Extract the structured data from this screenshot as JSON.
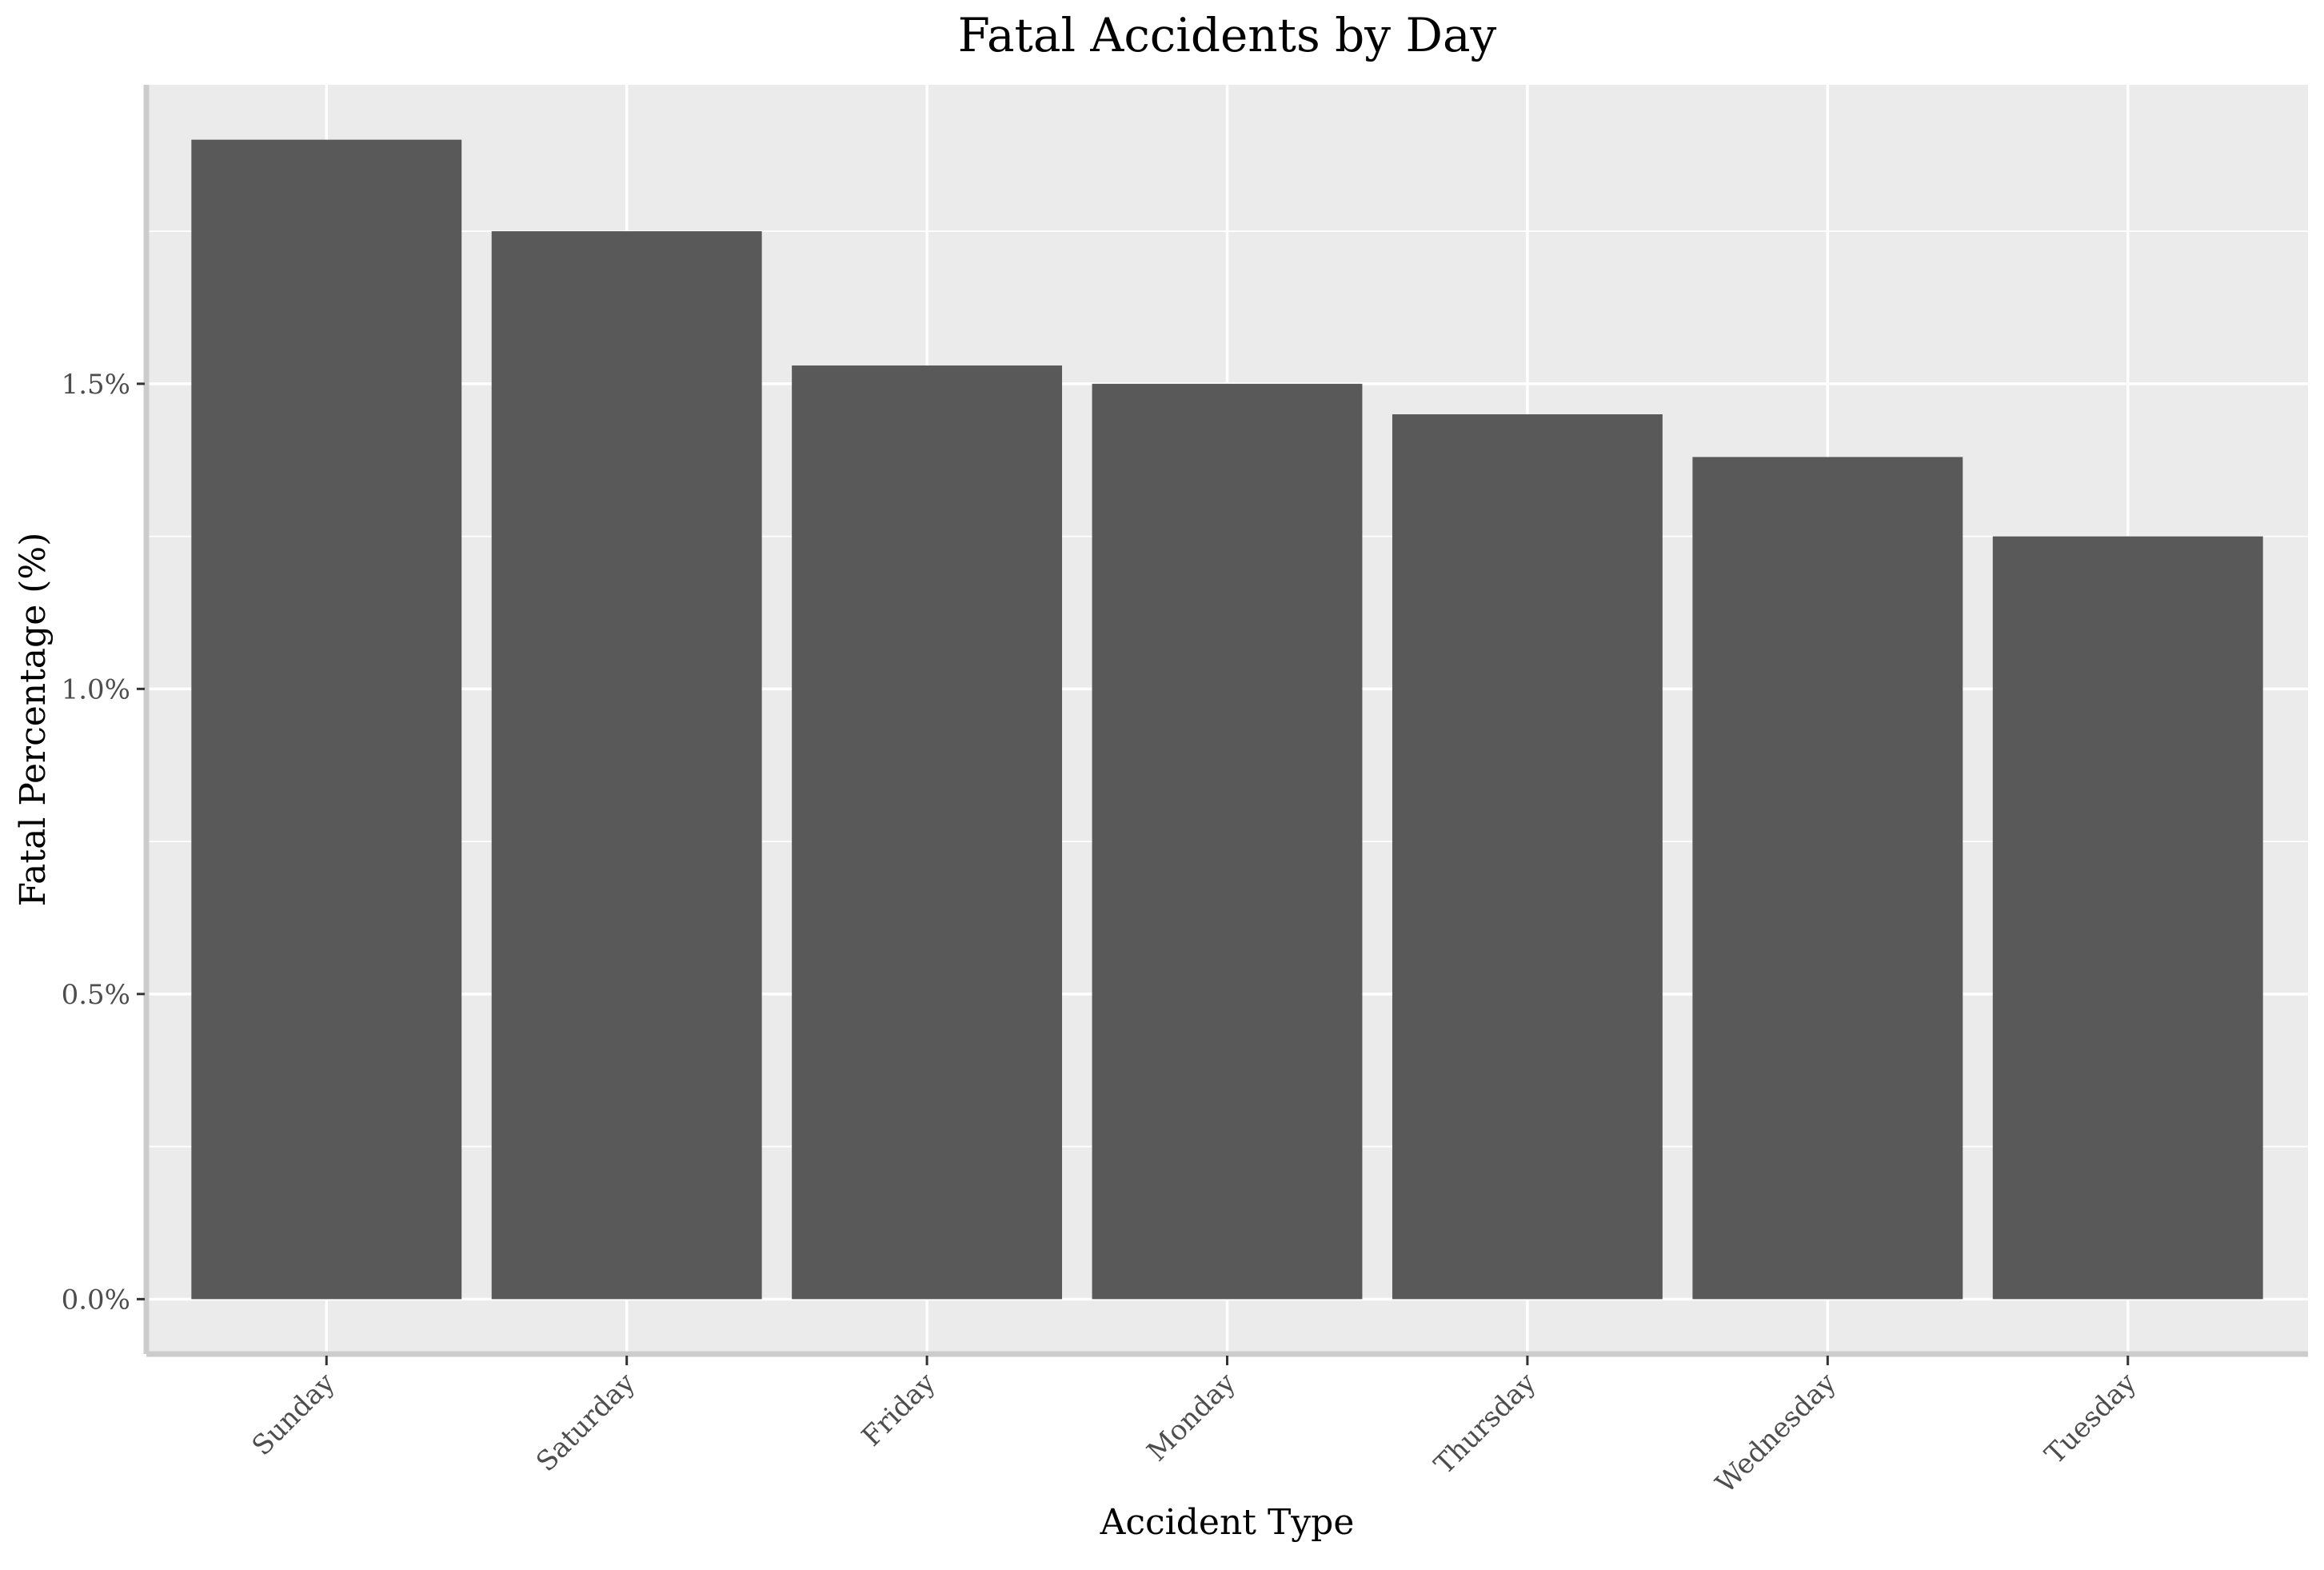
{
  "chart_data": {
    "type": "bar",
    "title": "Fatal Accidents by Day",
    "xlabel": "Accident Type",
    "ylabel": "Fatal Percentage (%)",
    "categories": [
      "Sunday",
      "Saturday",
      "Friday",
      "Monday",
      "Thursday",
      "Wednesday",
      "Tuesday"
    ],
    "values": [
      1.9,
      1.75,
      1.53,
      1.5,
      1.45,
      1.38,
      1.25
    ],
    "ylim": [
      -0.09,
      1.99
    ],
    "yticks": [
      0.0,
      0.5,
      1.0,
      1.5
    ],
    "ytick_labels": [
      "0.0%",
      "0.5%",
      "1.0%",
      "1.5%"
    ],
    "grid": true,
    "colors": {
      "bar": "#595959",
      "panel_background": "#ebebeb",
      "grid_major": "#ffffff",
      "grid_minor": "#ffffff",
      "axis_line": "#cccccc",
      "tick_label": "#4d4d4d",
      "text": "#000000"
    }
  }
}
